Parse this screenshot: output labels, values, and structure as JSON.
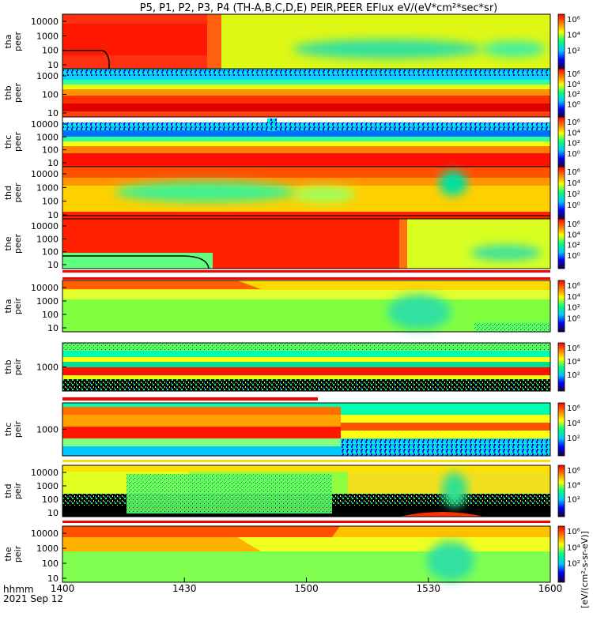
{
  "title": "P5, P1, P2, P3, P4 (TH-A,B,C,D,E) PEIR,PEER EFlux eV/(eV*cm²*sec*sr)",
  "colorbar_label": "[eV/(cm²-s-sr-eV)]",
  "colorbar_ticks": [
    "10⁶",
    "10⁴",
    "10²",
    "10⁰"
  ],
  "x_axis": {
    "label_line1": "hhmm",
    "label_line2": "2021 Sep 12",
    "ticks": [
      "1400",
      "1430",
      "1500",
      "1530",
      "1600"
    ]
  },
  "chart_data": {
    "type": "heatmap",
    "x_range": [
      "1400",
      "1600"
    ],
    "y_scale": "log",
    "color_scale": "log",
    "colormap": [
      "#1a0033",
      "#0000ff",
      "#00c8ff",
      "#00ff80",
      "#ffff00",
      "#ff8000",
      "#ff0000"
    ],
    "panels": [
      {
        "probe": "tha",
        "species": "peer",
        "ylabel": "tha\npeer",
        "yticks": [
          "10000",
          "1000",
          "100",
          "10"
        ],
        "colorbar_ticks": [
          "10⁶",
          "10⁴",
          "10²"
        ],
        "spacecraft_potential_line": true
      },
      {
        "probe": "thb",
        "species": "peer",
        "ylabel": "thb\npeer",
        "yticks": [
          "1000",
          "100",
          "10"
        ],
        "colorbar_ticks": [
          "10⁶",
          "10⁴",
          "10²",
          "10⁰"
        ]
      },
      {
        "probe": "thc",
        "species": "peer",
        "ylabel": "thc\npeer",
        "yticks": [
          "10000",
          "1000",
          "100",
          "10"
        ],
        "colorbar_ticks": [
          "10⁶",
          "10⁴",
          "10²",
          "10⁰"
        ]
      },
      {
        "probe": "thd",
        "species": "peer",
        "ylabel": "thd\npeer",
        "yticks": [
          "10000",
          "1000",
          "100",
          "10"
        ],
        "colorbar_ticks": [
          "10⁶",
          "10⁴",
          "10²",
          "10⁰"
        ]
      },
      {
        "probe": "the",
        "species": "peer",
        "ylabel": "the\npeer",
        "yticks": [
          "10000",
          "1000",
          "100",
          "10"
        ],
        "colorbar_ticks": [
          "10⁶",
          "10⁴",
          "10²",
          "10⁰"
        ],
        "spacecraft_potential_line": true
      },
      {
        "probe": "tha",
        "species": "peir",
        "ylabel": "tha\npeir",
        "yticks": [
          "10000",
          "1000",
          "100",
          "10"
        ],
        "colorbar_ticks": [
          "10⁶",
          "10⁴",
          "10²",
          "10⁰"
        ]
      },
      {
        "probe": "thb",
        "species": "peir",
        "ylabel": "thb\npeir",
        "yticks": [
          "1000"
        ],
        "colorbar_ticks": [
          "10⁶",
          "10⁴",
          "10²"
        ]
      },
      {
        "probe": "thc",
        "species": "peir",
        "ylabel": "thc\npeir",
        "yticks": [
          "1000"
        ],
        "colorbar_ticks": [
          "10⁶",
          "10⁴",
          "10²"
        ]
      },
      {
        "probe": "thd",
        "species": "peir",
        "ylabel": "thd\npeir",
        "yticks": [
          "10000",
          "1000",
          "100",
          "10"
        ],
        "colorbar_ticks": [
          "10⁶",
          "10⁴",
          "10²"
        ]
      },
      {
        "probe": "the",
        "species": "peir",
        "ylabel": "the\npeir",
        "yticks": [
          "10000",
          "1000",
          "100",
          "10"
        ],
        "colorbar_ticks": [
          "10⁶",
          "10⁴",
          "10²"
        ]
      }
    ]
  }
}
